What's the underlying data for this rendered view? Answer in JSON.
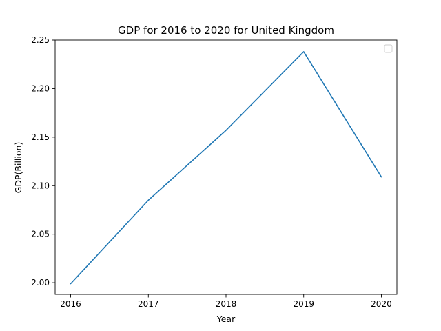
{
  "chart_data": {
    "type": "line",
    "title": "GDP for 2016 to 2020 for United Kingdom",
    "xlabel": "Year",
    "ylabel": "GDP(Billion)",
    "x": [
      2016,
      2017,
      2018,
      2019,
      2020
    ],
    "series": [
      {
        "values": [
          1.999,
          2.085,
          2.157,
          2.238,
          2.109
        ]
      }
    ],
    "xlim": [
      2015.8,
      2020.2
    ],
    "ylim": [
      1.988,
      2.25
    ],
    "xticks": [
      "2016",
      "2017",
      "2018",
      "2019",
      "2020"
    ],
    "yticks": [
      "2.00",
      "2.05",
      "2.10",
      "2.15",
      "2.20",
      "2.25"
    ],
    "grid": false,
    "legend": "top-right",
    "line_color": "#1f77b4"
  }
}
